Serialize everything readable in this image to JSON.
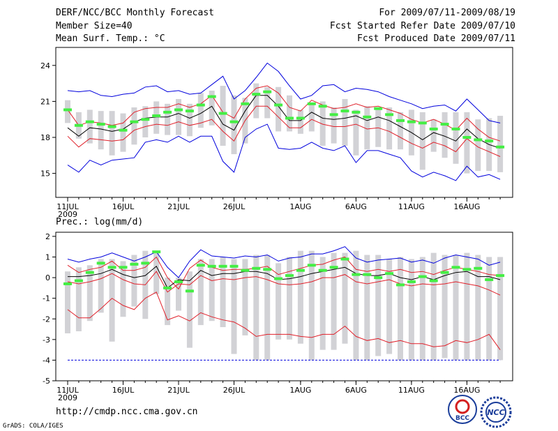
{
  "header": {
    "title": "DERF/NCC/BCC Monthly Forecast",
    "member_size": "Member Size=40",
    "variable": "Mean Surf. Temp.: °C",
    "period": "For 2009/07/11-2009/08/19",
    "start_date": "Fcst Started Refer Date 2009/07/10",
    "produced_date": "Fcst Produced Date 2009/07/11"
  },
  "footer": {
    "url": "http://cmdp.ncc.cma.gov.cn",
    "credit": "GrADS: COLA/IGES",
    "logo_bcc": "BCC",
    "logo_ncc": "NCC"
  },
  "colors": {
    "blue": "#0000dd",
    "red": "#e0202a",
    "green": "#44ee44",
    "box": "#d2d2d6",
    "black": "#000000"
  },
  "chart_data": [
    {
      "type": "line",
      "title": "Mean Surf. Temp.: °C",
      "ylim": [
        13,
        25.5
      ],
      "yticks": [
        15,
        18,
        21,
        24
      ],
      "xticks": [
        {
          "day": 0,
          "label": "11JUL"
        },
        {
          "day": 5,
          "label": "16JUL"
        },
        {
          "day": 10,
          "label": "21JUL"
        },
        {
          "day": 15,
          "label": "26JUL"
        },
        {
          "day": 21,
          "label": "1AUG"
        },
        {
          "day": 26,
          "label": "6AUG"
        },
        {
          "day": 31,
          "label": "11AUG"
        },
        {
          "day": 36,
          "label": "16AUG"
        }
      ],
      "year_label": "2009",
      "series": [
        {
          "name": "max",
          "color": "blue",
          "values": [
            21.9,
            21.8,
            21.9,
            21.5,
            21.4,
            21.6,
            21.7,
            22.2,
            22.3,
            21.8,
            21.9,
            21.6,
            21.7,
            22.4,
            23.1,
            21.2,
            21.9,
            23.0,
            24.2,
            23.5,
            22.3,
            21.2,
            21.5,
            22.3,
            22.4,
            21.8,
            22.1,
            22.0,
            21.8,
            21.4,
            21.1,
            20.8,
            20.4,
            20.6,
            20.7,
            20.2,
            21.2,
            20.3,
            19.4,
            19.2
          ]
        },
        {
          "name": "p75",
          "color": "red",
          "values": [
            20.3,
            19.0,
            19.3,
            19.2,
            19.0,
            19.2,
            20.1,
            20.4,
            20.5,
            20.5,
            20.8,
            20.5,
            20.8,
            21.5,
            20.1,
            19.6,
            21.2,
            22.1,
            22.3,
            21.7,
            20.5,
            20.2,
            21.1,
            20.7,
            20.4,
            20.5,
            20.8,
            20.5,
            20.6,
            20.3,
            20.0,
            19.5,
            19.2,
            19.5,
            19.1,
            18.6,
            19.6,
            18.7,
            18.0,
            17.7
          ]
        },
        {
          "name": "mean",
          "color": "black",
          "values": [
            18.8,
            18.1,
            18.8,
            18.7,
            18.5,
            18.7,
            19.3,
            19.6,
            19.7,
            19.7,
            20.0,
            19.6,
            20.0,
            20.6,
            19.1,
            18.6,
            20.2,
            21.5,
            21.5,
            20.6,
            19.4,
            19.4,
            20.1,
            19.6,
            19.5,
            19.6,
            19.8,
            19.4,
            19.7,
            19.4,
            18.9,
            18.4,
            17.8,
            18.4,
            18.1,
            17.7,
            18.7,
            17.9,
            17.4,
            17.1
          ]
        },
        {
          "name": "p25",
          "color": "red",
          "values": [
            18.1,
            17.2,
            17.9,
            17.8,
            17.7,
            17.8,
            18.6,
            18.9,
            19.1,
            19.0,
            19.3,
            19.0,
            19.2,
            19.5,
            18.5,
            17.7,
            19.4,
            20.6,
            20.6,
            19.7,
            18.8,
            18.8,
            19.5,
            19.1,
            18.9,
            18.9,
            19.1,
            18.7,
            18.8,
            18.5,
            18.0,
            17.5,
            17.1,
            17.6,
            17.3,
            16.8,
            17.9,
            17.2,
            16.8,
            16.4
          ]
        },
        {
          "name": "min",
          "color": "blue",
          "values": [
            15.7,
            15.1,
            16.1,
            15.7,
            16.1,
            16.2,
            16.3,
            17.6,
            17.8,
            17.6,
            18.1,
            17.6,
            18.1,
            18.1,
            16.0,
            15.1,
            18.0,
            18.7,
            19.1,
            17.1,
            17.0,
            17.1,
            17.6,
            17.1,
            16.9,
            17.3,
            15.9,
            16.9,
            16.9,
            16.6,
            16.3,
            15.2,
            14.7,
            15.1,
            14.8,
            14.4,
            15.6,
            14.7,
            14.9,
            14.5
          ]
        }
      ],
      "boxes": [
        {
          "low": 19.2,
          "high": 21.1
        },
        {
          "low": 17.9,
          "high": 20.1
        },
        {
          "low": 17.5,
          "high": 20.3
        },
        {
          "low": 17.0,
          "high": 20.2
        },
        {
          "low": 16.5,
          "high": 20.2
        },
        {
          "low": 16.8,
          "high": 20.0
        },
        {
          "low": 17.4,
          "high": 20.5
        },
        {
          "low": 18.0,
          "high": 20.6
        },
        {
          "low": 18.3,
          "high": 21.0
        },
        {
          "low": 18.2,
          "high": 20.8
        },
        {
          "low": 18.2,
          "high": 21.2
        },
        {
          "low": 18.1,
          "high": 20.8
        },
        {
          "low": 18.8,
          "high": 21.7
        },
        {
          "low": 19.0,
          "high": 21.9
        },
        {
          "low": 17.3,
          "high": 22.3
        },
        {
          "low": 16.6,
          "high": 21.5
        },
        {
          "low": 17.5,
          "high": 21.3
        },
        {
          "low": 19.6,
          "high": 22.5
        },
        {
          "low": 19.6,
          "high": 22.2
        },
        {
          "low": 18.5,
          "high": 22.2
        },
        {
          "low": 18.5,
          "high": 21.5
        },
        {
          "low": 18.3,
          "high": 20.3
        },
        {
          "low": 18.5,
          "high": 20.8
        },
        {
          "low": 17.3,
          "high": 21.0
        },
        {
          "low": 17.5,
          "high": 20.5
        },
        {
          "low": 17.3,
          "high": 21.2
        },
        {
          "low": 16.5,
          "high": 20.3
        },
        {
          "low": 17.0,
          "high": 20.6
        },
        {
          "low": 17.2,
          "high": 20.5
        },
        {
          "low": 17.0,
          "high": 20.5
        },
        {
          "low": 17.0,
          "high": 20.1
        },
        {
          "low": 16.5,
          "high": 20.3
        },
        {
          "low": 15.3,
          "high": 20.1
        },
        {
          "low": 16.8,
          "high": 19.5
        },
        {
          "low": 16.3,
          "high": 20.1
        },
        {
          "low": 15.8,
          "high": 20.1
        },
        {
          "low": 15.0,
          "high": 20.1
        },
        {
          "low": 15.2,
          "high": 19.5
        },
        {
          "low": 15.2,
          "high": 19.6
        },
        {
          "low": 15.1,
          "high": 19.8
        }
      ],
      "observed_marks": [
        20.3,
        19.0,
        19.3,
        19.1,
        18.9,
        18.6,
        19.3,
        19.5,
        19.8,
        20.1,
        20.3,
        20.2,
        20.7,
        21.4,
        20.0,
        19.3,
        20.8,
        21.6,
        21.8,
        20.7,
        19.6,
        19.6,
        20.8,
        20.6,
        19.9,
        20.2,
        20.1,
        19.7,
        20.4,
        19.9,
        19.4,
        19.3,
        19.2,
        18.7,
        19.1,
        18.7,
        18.0,
        17.8,
        17.7,
        17.2
      ]
    },
    {
      "type": "line",
      "title": "Prec.: log(mm/d)",
      "ylim": [
        -5,
        2.2
      ],
      "yticks": [
        -5,
        -4,
        -3,
        -2,
        -1,
        0,
        1,
        2
      ],
      "xticks": [
        {
          "day": 0,
          "label": "11JUL"
        },
        {
          "day": 5,
          "label": "16JUL"
        },
        {
          "day": 10,
          "label": "21JUL"
        },
        {
          "day": 15,
          "label": "26JUL"
        },
        {
          "day": 21,
          "label": "1AUG"
        },
        {
          "day": 26,
          "label": "6AUG"
        },
        {
          "day": 31,
          "label": "11AUG"
        },
        {
          "day": 36,
          "label": "16AUG"
        }
      ],
      "year_label": "2009",
      "series": [
        {
          "name": "max",
          "color": "blue",
          "values": [
            0.9,
            0.75,
            0.9,
            1.0,
            1.2,
            1.0,
            0.8,
            1.0,
            1.25,
            0.5,
            0.0,
            0.8,
            1.35,
            1.05,
            1.0,
            0.95,
            1.05,
            1.0,
            1.1,
            0.8,
            0.95,
            1.0,
            1.15,
            1.15,
            1.3,
            1.5,
            0.95,
            0.75,
            0.85,
            0.9,
            0.95,
            0.75,
            0.85,
            0.7,
            0.95,
            1.1,
            1.0,
            0.9,
            0.6,
            0.75
          ]
        },
        {
          "name": "p75",
          "color": "red",
          "values": [
            0.6,
            0.25,
            0.4,
            0.5,
            0.8,
            0.35,
            0.35,
            0.5,
            1.0,
            0.0,
            -0.55,
            0.45,
            0.85,
            0.5,
            0.35,
            0.4,
            0.4,
            0.45,
            0.55,
            0.15,
            0.3,
            0.45,
            0.6,
            0.65,
            0.85,
            1.0,
            0.4,
            0.3,
            0.4,
            0.3,
            0.4,
            0.25,
            0.3,
            0.15,
            0.35,
            0.5,
            0.4,
            0.3,
            0.15,
            0.1
          ]
        },
        {
          "name": "mean",
          "color": "black",
          "values": [
            0.05,
            0.05,
            0.1,
            0.2,
            0.4,
            0.15,
            0.0,
            0.1,
            0.55,
            -0.5,
            -0.1,
            -0.15,
            0.35,
            0.1,
            0.2,
            0.2,
            0.3,
            0.3,
            0.2,
            -0.1,
            -0.05,
            0.05,
            0.2,
            0.3,
            0.4,
            0.5,
            0.2,
            0.1,
            0.1,
            0.2,
            0.0,
            -0.1,
            0.05,
            -0.1,
            0.1,
            0.25,
            0.3,
            0.05,
            0.05,
            -0.1
          ]
        },
        {
          "name": "p25",
          "color": "red",
          "values": [
            -0.2,
            -0.3,
            -0.2,
            -0.05,
            0.2,
            -0.1,
            -0.3,
            -0.35,
            0.3,
            -0.7,
            -0.3,
            -0.35,
            0.1,
            -0.15,
            -0.05,
            -0.1,
            0.0,
            0.05,
            -0.1,
            -0.3,
            -0.35,
            -0.3,
            -0.2,
            0.0,
            0.0,
            0.15,
            -0.2,
            -0.3,
            -0.2,
            -0.1,
            -0.3,
            -0.4,
            -0.3,
            -0.35,
            -0.3,
            -0.2,
            -0.3,
            -0.4,
            -0.6,
            -0.85
          ]
        },
        {
          "name": "min",
          "color": "red",
          "values": [
            -1.55,
            -1.95,
            -1.95,
            -1.5,
            -1.0,
            -1.35,
            -1.55,
            -1.0,
            -0.7,
            -2.05,
            -1.85,
            -2.1,
            -1.7,
            -1.9,
            -2.05,
            -2.15,
            -2.45,
            -2.85,
            -2.75,
            -2.75,
            -2.75,
            -2.85,
            -2.9,
            -2.75,
            -2.75,
            -2.35,
            -2.85,
            -3.05,
            -2.95,
            -3.15,
            -3.05,
            -3.2,
            -3.2,
            -3.35,
            -3.3,
            -3.05,
            -3.15,
            -3.0,
            -2.75,
            -3.5
          ]
        },
        {
          "name": "floor",
          "color": "blue",
          "dashed": true,
          "values": [
            -4.0,
            -4.0,
            -4.0,
            -4.0,
            -4.0,
            -4.0,
            -4.0,
            -4.0,
            -4.0,
            -4.0,
            -4.0,
            -4.0,
            -4.0,
            -4.0,
            -4.0,
            -4.0,
            -4.0,
            -4.0,
            -4.0,
            -4.0,
            -4.0,
            -4.0,
            -4.0,
            -4.0,
            -4.0,
            -4.0,
            -4.0,
            -4.0,
            -4.0,
            -4.0,
            -4.0,
            -4.0,
            -4.0,
            -4.0,
            -4.0,
            -4.0,
            -4.0,
            -4.0,
            -4.0,
            -4.0
          ]
        }
      ],
      "boxes": [
        {
          "low": -2.7,
          "high": 0.3
        },
        {
          "low": -2.6,
          "high": 0.5
        },
        {
          "low": -2.1,
          "high": 0.6
        },
        {
          "low": -1.7,
          "high": 0.9
        },
        {
          "low": -3.1,
          "high": 0.9
        },
        {
          "low": -1.9,
          "high": 0.8
        },
        {
          "low": -1.4,
          "high": 1.1
        },
        {
          "low": -2.0,
          "high": 1.3
        },
        {
          "low": -0.8,
          "high": 1.2
        },
        {
          "low": -2.3,
          "high": 0.0
        },
        {
          "low": -1.6,
          "high": 0.0
        },
        {
          "low": -3.4,
          "high": 0.3
        },
        {
          "low": -2.3,
          "high": 0.9
        },
        {
          "low": -2.1,
          "high": 0.9
        },
        {
          "low": -2.4,
          "high": 1.0
        },
        {
          "low": -3.7,
          "high": 0.9
        },
        {
          "low": -2.8,
          "high": 0.9
        },
        {
          "low": -4.0,
          "high": 1.1
        },
        {
          "low": -4.0,
          "high": 1.1
        },
        {
          "low": -3.0,
          "high": 0.7
        },
        {
          "low": -3.0,
          "high": 1.0
        },
        {
          "low": -3.2,
          "high": 1.3
        },
        {
          "low": -4.0,
          "high": 1.3
        },
        {
          "low": -3.5,
          "high": 1.0
        },
        {
          "low": -3.5,
          "high": 1.2
        },
        {
          "low": -3.2,
          "high": 1.2
        },
        {
          "low": -4.0,
          "high": 1.3
        },
        {
          "low": -4.0,
          "high": 1.1
        },
        {
          "low": -3.8,
          "high": 1.1
        },
        {
          "low": -3.7,
          "high": 0.9
        },
        {
          "low": -4.0,
          "high": 1.0
        },
        {
          "low": -4.0,
          "high": 0.9
        },
        {
          "low": -4.0,
          "high": 1.0
        },
        {
          "low": -4.0,
          "high": 1.2
        },
        {
          "low": -3.9,
          "high": 1.1
        },
        {
          "low": -4.0,
          "high": 1.1
        },
        {
          "low": -4.0,
          "high": 1.2
        },
        {
          "low": -4.0,
          "high": 1.1
        },
        {
          "low": -4.0,
          "high": 1.0
        },
        {
          "low": -4.0,
          "high": 1.0
        }
      ],
      "observed_marks": [
        -0.3,
        -0.15,
        0.25,
        0.7,
        0.5,
        0.5,
        0.65,
        0.7,
        1.25,
        -0.5,
        -0.2,
        -0.65,
        0.6,
        0.55,
        0.55,
        0.55,
        0.35,
        0.45,
        0.4,
        -0.05,
        0.1,
        0.35,
        0.6,
        0.35,
        0.5,
        0.9,
        0.15,
        0.15,
        0.0,
        0.2,
        -0.35,
        -0.2,
        0.05,
        -0.15,
        0.25,
        0.5,
        0.4,
        0.45,
        -0.1,
        0.1
      ]
    }
  ]
}
